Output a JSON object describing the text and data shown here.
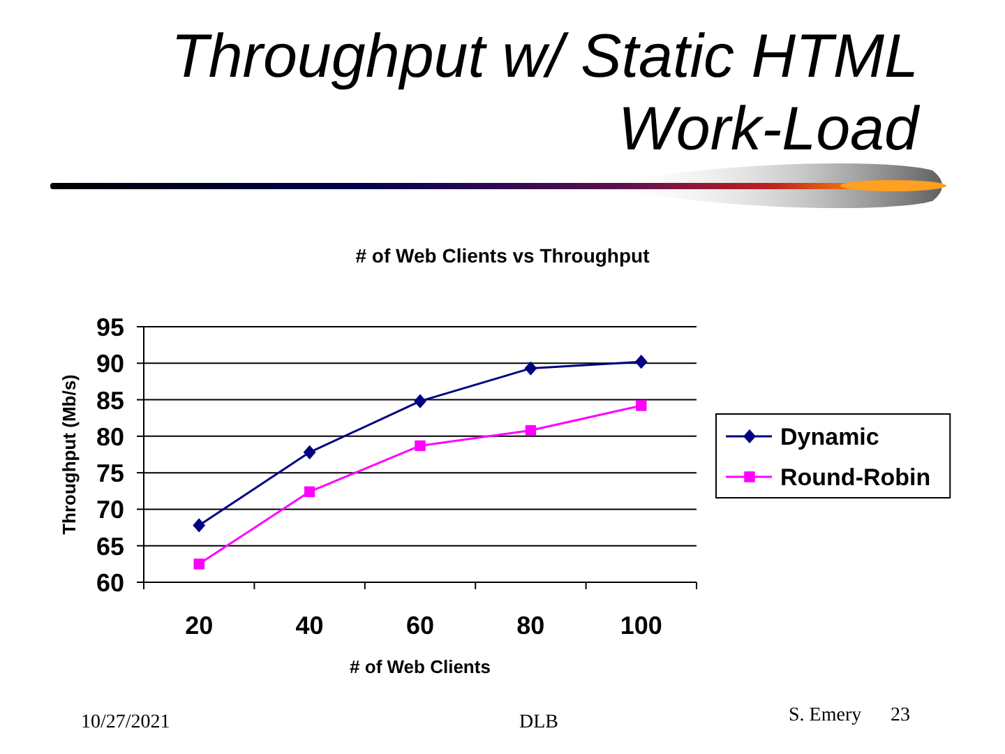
{
  "chart_data": {
    "type": "line",
    "title": "Throughput w/ Static HTML Work-Load",
    "subtitle": "# of Web Clients vs Throughput",
    "xlabel": "# of Web Clients",
    "ylabel": "Throughput (Mb/s)",
    "categories": [
      "20",
      "40",
      "60",
      "80",
      "100"
    ],
    "series": [
      {
        "name": "Dynamic",
        "color": "#000080",
        "marker": "diamond",
        "values": [
          67.8,
          77.8,
          84.8,
          89.3,
          90.2
        ]
      },
      {
        "name": "Round-Robin",
        "color": "#ff00ff",
        "marker": "square",
        "values": [
          62.5,
          72.4,
          78.7,
          80.8,
          84.2
        ]
      }
    ],
    "ylim": [
      60,
      95
    ],
    "yticks": [
      60,
      65,
      70,
      75,
      80,
      85,
      90,
      95
    ],
    "grid": "y",
    "legend": "right",
    "annotations": [
      "10/27/2021",
      "DLB",
      "S. Emery",
      "23"
    ]
  }
}
